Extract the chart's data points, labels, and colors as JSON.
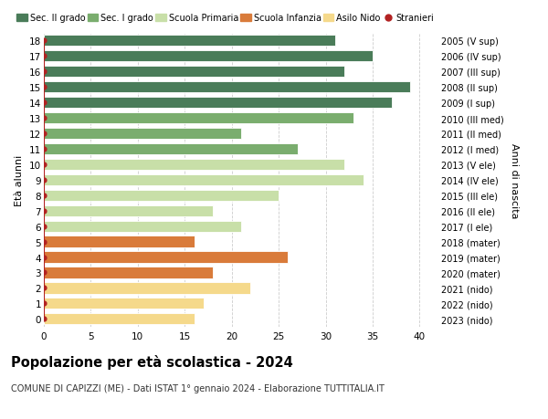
{
  "ages": [
    18,
    17,
    16,
    15,
    14,
    13,
    12,
    11,
    10,
    9,
    8,
    7,
    6,
    5,
    4,
    3,
    2,
    1,
    0
  ],
  "years": [
    "2005 (V sup)",
    "2006 (IV sup)",
    "2007 (III sup)",
    "2008 (II sup)",
    "2009 (I sup)",
    "2010 (III med)",
    "2011 (II med)",
    "2012 (I med)",
    "2013 (V ele)",
    "2014 (IV ele)",
    "2015 (III ele)",
    "2016 (II ele)",
    "2017 (I ele)",
    "2018 (mater)",
    "2019 (mater)",
    "2020 (mater)",
    "2021 (nido)",
    "2022 (nido)",
    "2023 (nido)"
  ],
  "values": [
    31,
    35,
    32,
    39,
    37,
    33,
    21,
    27,
    32,
    34,
    25,
    18,
    21,
    16,
    26,
    18,
    22,
    17,
    16
  ],
  "colors": [
    "#4a7c59",
    "#4a7c59",
    "#4a7c59",
    "#4a7c59",
    "#4a7c59",
    "#7aad6e",
    "#7aad6e",
    "#7aad6e",
    "#c8dfa8",
    "#c8dfa8",
    "#c8dfa8",
    "#c8dfa8",
    "#c8dfa8",
    "#d97b3a",
    "#d97b3a",
    "#d97b3a",
    "#f5d98b",
    "#f5d98b",
    "#f5d98b"
  ],
  "legend_labels": [
    "Sec. II grado",
    "Sec. I grado",
    "Scuola Primaria",
    "Scuola Infanzia",
    "Asilo Nido",
    "Stranieri"
  ],
  "legend_colors": [
    "#4a7c59",
    "#7aad6e",
    "#c8dfa8",
    "#d97b3a",
    "#f5d98b",
    "#b22222"
  ],
  "title": "Popolazione per età scolastica - 2024",
  "subtitle": "COMUNE DI CAPIZZI (ME) - Dati ISTAT 1° gennaio 2024 - Elaborazione TUTTITALIA.IT",
  "ylabel_left": "Età alunni",
  "ylabel_right": "Anni di nascita",
  "xlim": [
    0,
    42
  ],
  "xticks": [
    0,
    5,
    10,
    15,
    20,
    25,
    30,
    35,
    40
  ],
  "background_color": "#ffffff",
  "grid_color": "#cccccc",
  "stranieri_color": "#b22222",
  "bar_height": 0.72
}
